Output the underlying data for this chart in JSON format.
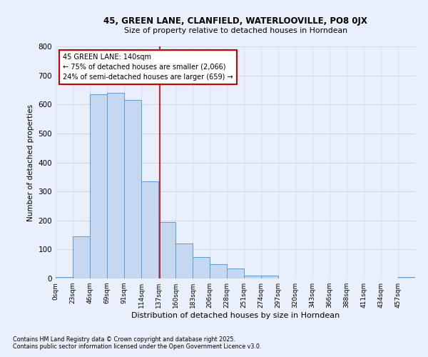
{
  "title1": "45, GREEN LANE, CLANFIELD, WATERLOOVILLE, PO8 0JX",
  "title2": "Size of property relative to detached houses in Horndean",
  "xlabel": "Distribution of detached houses by size in Horndean",
  "ylabel": "Number of detached properties",
  "annotation_title": "45 GREEN LANE: 140sqm",
  "annotation_line1": "← 75% of detached houses are smaller (2,066)",
  "annotation_line2": "24% of semi-detached houses are larger (659) →",
  "footer1": "Contains HM Land Registry data © Crown copyright and database right 2025.",
  "footer2": "Contains public sector information licensed under the Open Government Licence v3.0.",
  "bar_color": "#c5d8f0",
  "bar_edge_color": "#5b9bd5",
  "grid_color": "#d0d8e8",
  "bg_color": "#eaf0fb",
  "annotation_box_color": "#ffffff",
  "annotation_box_edge": "#cc0000",
  "vline_color": "#cc0000",
  "categories": [
    "0sqm",
    "23sqm",
    "46sqm",
    "69sqm",
    "91sqm",
    "114sqm",
    "137sqm",
    "160sqm",
    "183sqm",
    "206sqm",
    "228sqm",
    "251sqm",
    "274sqm",
    "297sqm",
    "320sqm",
    "343sqm",
    "366sqm",
    "388sqm",
    "411sqm",
    "434sqm",
    "457sqm"
  ],
  "values": [
    5,
    145,
    635,
    640,
    615,
    335,
    195,
    120,
    75,
    50,
    35,
    10,
    10,
    0,
    0,
    0,
    0,
    0,
    0,
    0,
    5
  ],
  "ylim": [
    0,
    800
  ],
  "yticks": [
    0,
    100,
    200,
    300,
    400,
    500,
    600,
    700,
    800
  ],
  "vline_x": 140
}
